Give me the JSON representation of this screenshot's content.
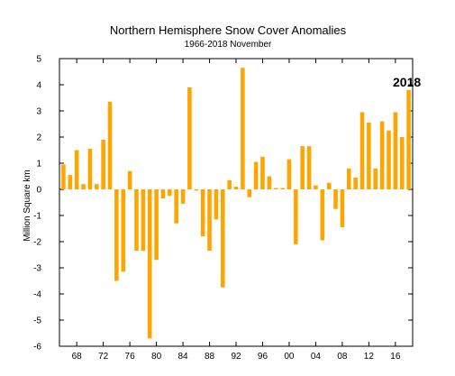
{
  "chart_data": {
    "type": "bar",
    "title": "Northern Hemisphere Snow Cover Anomalies",
    "subtitle": "1966-2018 November",
    "xlabel": "",
    "ylabel": "Million Square km",
    "bar_color": "#FFA500",
    "ylim": [
      -6,
      5
    ],
    "yticks": [
      5,
      4,
      3,
      2,
      1,
      0,
      -1,
      -2,
      -3,
      -4,
      -5,
      -6
    ],
    "xticks": [
      {
        "year": 1968,
        "label": "68"
      },
      {
        "year": 1972,
        "label": "72"
      },
      {
        "year": 1976,
        "label": "76"
      },
      {
        "year": 1980,
        "label": "80"
      },
      {
        "year": 1984,
        "label": "84"
      },
      {
        "year": 1988,
        "label": "88"
      },
      {
        "year": 1992,
        "label": "92"
      },
      {
        "year": 1996,
        "label": "96"
      },
      {
        "year": 2000,
        "label": "00"
      },
      {
        "year": 2004,
        "label": "04"
      },
      {
        "year": 2008,
        "label": "08"
      },
      {
        "year": 2012,
        "label": "12"
      },
      {
        "year": 2016,
        "label": "16"
      }
    ],
    "x": [
      1966,
      1967,
      1968,
      1969,
      1970,
      1971,
      1972,
      1973,
      1974,
      1975,
      1976,
      1977,
      1978,
      1979,
      1980,
      1981,
      1982,
      1983,
      1984,
      1985,
      1986,
      1987,
      1988,
      1989,
      1990,
      1991,
      1992,
      1993,
      1994,
      1995,
      1996,
      1997,
      1998,
      1999,
      2000,
      2001,
      2002,
      2003,
      2004,
      2005,
      2006,
      2007,
      2008,
      2009,
      2010,
      2011,
      2012,
      2013,
      2014,
      2015,
      2016,
      2017,
      2018
    ],
    "values": [
      0.95,
      0.55,
      1.5,
      0.2,
      1.55,
      0.2,
      1.9,
      3.35,
      -3.5,
      -3.15,
      0.7,
      -2.35,
      -2.35,
      -5.7,
      -2.7,
      -0.35,
      -0.25,
      -1.3,
      -0.55,
      3.9,
      -0.05,
      -1.8,
      -2.35,
      -1.15,
      -3.75,
      0.35,
      0.1,
      4.65,
      -0.3,
      1.05,
      1.25,
      0.5,
      0.05,
      0.05,
      1.15,
      -2.1,
      1.65,
      1.65,
      0.15,
      -1.95,
      0.25,
      -0.75,
      -1.45,
      0.8,
      0.45,
      2.95,
      2.55,
      0.8,
      2.6,
      2.25,
      2.95,
      2.0,
      3.8
    ],
    "annotation": "2018",
    "annotation_year": 2018
  }
}
